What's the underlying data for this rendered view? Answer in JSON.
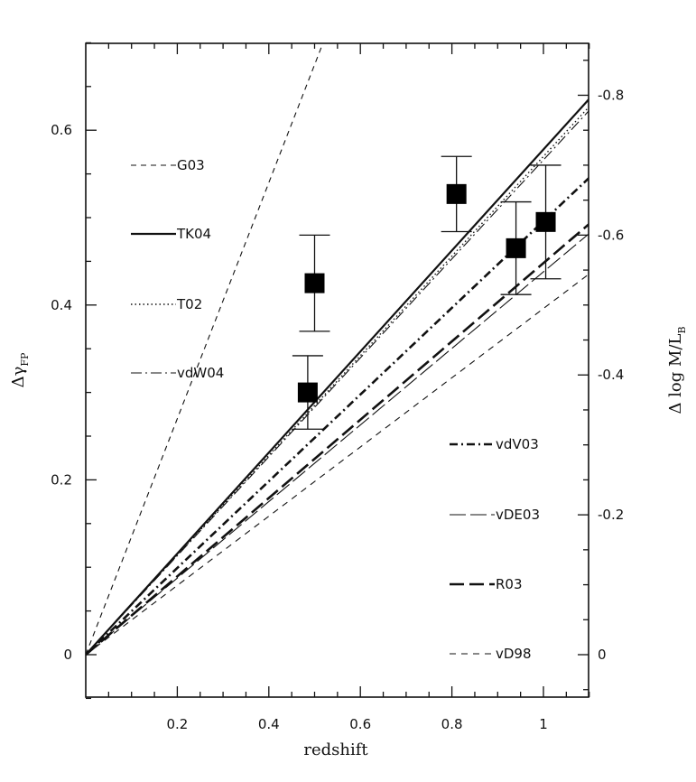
{
  "chart_data": {
    "type": "scatter",
    "title": "",
    "xlabel": "redshift",
    "ylabel": "Δγ",
    "ylabel_sub": "FP",
    "ylabel_right": "Δ log M/L",
    "ylabel_right_sub": "B",
    "xlim": [
      0.0,
      1.1
    ],
    "ylim": [
      -0.05,
      0.7
    ],
    "xticks": [
      0.2,
      0.4,
      0.6,
      0.8,
      1.0
    ],
    "xtick_labels": [
      "0.2",
      "0.4",
      "0.6",
      "0.8",
      "1"
    ],
    "yticks": [
      0,
      0.2,
      0.4,
      0.6
    ],
    "ytick_labels": [
      "0",
      "0.2",
      "0.4",
      "0.6"
    ],
    "right_axis": {
      "ticks": [
        0,
        0.16,
        0.32,
        0.48,
        0.64
      ],
      "tick_labels": [
        "0",
        "-0.2",
        "-0.4",
        "-0.6",
        "-0.8"
      ]
    },
    "points": [
      {
        "x": 0.485,
        "y": 0.3,
        "yerr_low": 0.042,
        "yerr_high": 0.042
      },
      {
        "x": 0.5,
        "y": 0.425,
        "yerr_low": 0.055,
        "yerr_high": 0.055
      },
      {
        "x": 0.81,
        "y": 0.527,
        "yerr_low": 0.043,
        "yerr_high": 0.043
      },
      {
        "x": 0.94,
        "y": 0.465,
        "yerr_low": 0.053,
        "yerr_high": 0.053
      },
      {
        "x": 1.005,
        "y": 0.495,
        "yerr_low": 0.065,
        "yerr_high": 0.065
      }
    ],
    "series": [
      {
        "name": "G03",
        "slope": 1.35,
        "style": "thin-dashed"
      },
      {
        "name": "TK04",
        "slope": 0.578,
        "style": "solid"
      },
      {
        "name": "T02",
        "slope": 0.57,
        "style": "dotted"
      },
      {
        "name": "vdW04",
        "slope": 0.566,
        "style": "thin-dash-dot"
      },
      {
        "name": "vdV03",
        "slope": 0.496,
        "style": "thick-dash-dot"
      },
      {
        "name": "vDE03",
        "slope": 0.438,
        "style": "thin-long-dash"
      },
      {
        "name": "R03",
        "slope": 0.448,
        "style": "thick-long-dash"
      },
      {
        "name": "vD98",
        "slope": 0.396,
        "style": "thin-short-dash"
      }
    ]
  }
}
